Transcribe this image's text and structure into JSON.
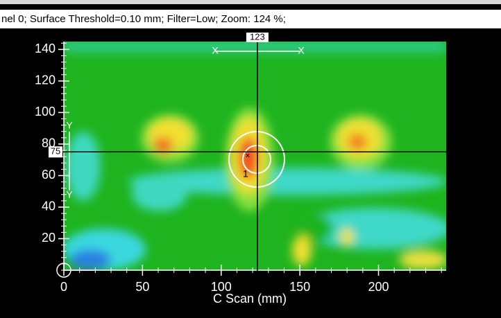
{
  "header": {
    "text": "nel 0; Surface Threshold=0.10 mm;  Filter=Low;  Zoom: 124 %;"
  },
  "chart_data": {
    "type": "heatmap",
    "x_label": "C Scan (mm)",
    "xlim": [
      0,
      243
    ],
    "ylim": [
      0,
      145
    ],
    "xticks": [
      0,
      50,
      100,
      150,
      200
    ],
    "yticks": [
      20,
      40,
      60,
      80,
      100,
      120,
      140
    ],
    "cursor": {
      "x": 123,
      "y": 75,
      "marker": "1",
      "x_marker": "X",
      "y_marker": "Y"
    }
  }
}
